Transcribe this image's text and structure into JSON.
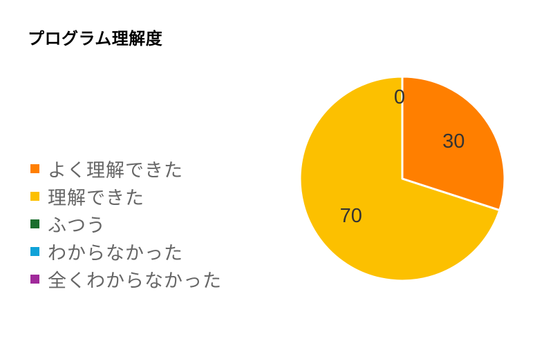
{
  "chart_data": {
    "type": "pie",
    "title": "プログラム理解度",
    "legend_position": "left",
    "slices": [
      {
        "label": "よく理解できた",
        "value": 30,
        "color": "#ff7f00"
      },
      {
        "label": "理解できた",
        "value": 70,
        "color": "#fcc000"
      },
      {
        "label": "ふつう",
        "value": 0,
        "color": "#1b6e2e"
      },
      {
        "label": "わからなかった",
        "value": 0,
        "color": "#0fa2d8"
      },
      {
        "label": "全くわからなかった",
        "value": 0,
        "color": "#a02a9a"
      }
    ]
  }
}
